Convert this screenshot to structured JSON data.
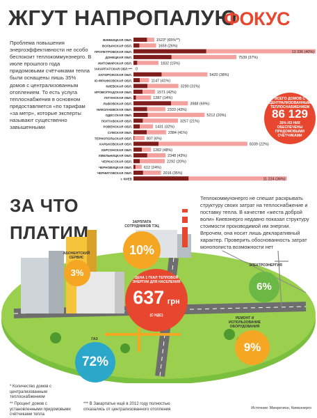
{
  "header": {
    "title": "ЖГУТ НАПРОПАЛУЮ",
    "logo": "ФОКУС"
  },
  "intro_text": "Проблема повышения энергоэффективности не особо беспокоит теплокоммунэнерго. В июле прошлого года придомовыми счётчиками тепла были оснащены лишь 35% домов с централизованным отоплением. То есть услуга теплоснабжения в основном предоставляется «по тарифам «за метр», которые эксперты называют существенно завышенными",
  "callout": {
    "top_text": "ВСЕГО ДОМОВ С ЦЕНТРАЛИЗОВАННЫМ ТЕПЛОСНАБЖЕНИЕМ",
    "value": "86 129",
    "bottom_text": "35% ИЗ НИХ ОБЕСПЕЧЕНЫ ПРИДОМОВЫМИ СЧЁТЧИКАМИ"
  },
  "chart_data": {
    "type": "bar",
    "series": [
      {
        "name": "Количество домов с централизованным теплоснабжением"
      },
      {
        "name": "Процент домов с установленными придомовыми счётчиками тепла"
      }
    ],
    "rows": [
      {
        "region": "ВИННИЦКАЯ ОБЛ.",
        "houses": 1523,
        "pct": 65,
        "label": "1523* (65%**)"
      },
      {
        "region": "ВОЛЫНСКАЯ ОБЛ.",
        "houses": 1659,
        "pct": 26,
        "label": "1659 (26%)"
      },
      {
        "region": "ДНЕПРОПЕТРОВСКАЯ ОБЛ.",
        "houses": 13336,
        "pct": 40,
        "label": "13 336 (40%)"
      },
      {
        "region": "ДОНЕЦКАЯ ОБЛ.",
        "houses": 7539,
        "pct": 37,
        "label": "7539 (37%)"
      },
      {
        "region": "ЖИТОМИРСКАЯ ОБЛ.",
        "houses": 1832,
        "pct": 15,
        "label": "1832 (15%)"
      },
      {
        "region": "ЗАКАРПАТСКАЯ ОБЛ.***",
        "houses": 0,
        "pct": 0,
        "label": "0"
      },
      {
        "region": "ЗАПОРОЖСКАЯ ОБЛ.",
        "houses": 5420,
        "pct": 38,
        "label": "5420 (38%)"
      },
      {
        "region": "ИВАНО-ФРАНКОВСКАЯ ОБЛ.",
        "houses": 1147,
        "pct": 41,
        "label": "1147 (41%)"
      },
      {
        "region": "КИЕВСКАЯ ОБЛ.",
        "houses": 3290,
        "pct": 31,
        "label": "3290 (31%)"
      },
      {
        "region": "КИРОВОГРАДСКАЯ ОБЛ.",
        "houses": 1571,
        "pct": 42,
        "label": "1571 (42%)"
      },
      {
        "region": "ЛУГАНСКАЯ ОБЛ.",
        "houses": 1287,
        "pct": 14,
        "label": "1287 (14%)"
      },
      {
        "region": "ЛЬВОВСКАЯ ОБЛ.",
        "houses": 3988,
        "pct": 69,
        "label": "3988 (69%)"
      },
      {
        "region": "НИКОЛАЕВСКАЯ ОБЛ.",
        "houses": 2333,
        "pct": 43,
        "label": "2333 (43%)"
      },
      {
        "region": "ОДЕССКАЯ ОБЛ.",
        "houses": 5212,
        "pct": 20,
        "label": "5212 (20%)"
      },
      {
        "region": "ПОЛТАВСКАЯ ОБЛ.",
        "houses": 3257,
        "pct": 21,
        "label": "3257 (21%)"
      },
      {
        "region": "РОВЕНСКАЯ ОБЛ.",
        "houses": 1431,
        "pct": 32,
        "label": "1431 (32%)"
      },
      {
        "region": "СУМСКАЯ ОБЛ.",
        "houses": 2384,
        "pct": 41,
        "label": "2384 (41%)"
      },
      {
        "region": "ТЕРНОПОЛЬСКАЯ ОБЛ.",
        "houses": 807,
        "pct": 6,
        "label": "807 (6%)"
      },
      {
        "region": "ХАРЬКОВСКАЯ ОБЛ.",
        "houses": 8339,
        "pct": 22,
        "label": "8339 (22%)"
      },
      {
        "region": "ХЕРСОНСКАЯ ОБЛ.",
        "houses": 1282,
        "pct": 48,
        "label": "1282 (48%)"
      },
      {
        "region": "ХМЕЛЬНИЦКАЯ ОБЛ.",
        "houses": 2348,
        "pct": 43,
        "label": "2348 (43%)"
      },
      {
        "region": "ЧЕРКАССКАЯ ОБЛ.",
        "houses": 2292,
        "pct": 20,
        "label": "2292 (20%)"
      },
      {
        "region": "ЧЕРНОВИЦКАЯ ОБЛ.",
        "houses": 612,
        "pct": 24,
        "label": "612 (24%)"
      },
      {
        "region": "ЧЕРНИГОВСКАЯ ОБЛ.",
        "houses": 2016,
        "pct": 35,
        "label": "2016 (35%)"
      },
      {
        "region": "г. КИЕВ",
        "houses": 11224,
        "pct": 36,
        "label": "11 224 (36%)"
      }
    ],
    "xlim": [
      0,
      13336
    ]
  },
  "section2": {
    "title_line1": "ЗА ЧТО",
    "title_line2": "ПЛАТИМ",
    "paragraph": "Теплокоммунэнерго не спешат раскрывать структуру своих затрат на теплоснабжение и поставку тепла. В качестве «жеста доброй воли» Киевэнерго недавно показал структуру стоимости производимой им энергии. Впрочем, она носит лишь декларативный характер. Проверить обоснованность затрат монополиста возможности нет"
  },
  "cost_structure": [
    {
      "label": "ЗАРПЛАТА СОТРУДНИКОВ ТЭЦ",
      "value": "10%"
    },
    {
      "label": "АБОНЕНТСКИЙ СЕРВИС",
      "value": "3%"
    },
    {
      "label": "ГАЗ",
      "value": "72%"
    },
    {
      "label": "ЭЛЕКТРОЭНЕРГИЯ",
      "value": "6%"
    },
    {
      "label": "РЕМОНТ И ИСПОЛЬЗОВАНИЕ ОБОРУДОВАНИЯ",
      "value": "9%"
    }
  ],
  "price": {
    "label": "ЦЕНА 1 ГКАЛ ТЕПЛОВОЙ ЭНЕРГИИ ДЛЯ НАСЕЛЕНИЯ",
    "value": "637",
    "unit": "грн",
    "note": "(С НДС)"
  },
  "footnotes": {
    "f1": "* Количество домов с централизованным теплоснабжением",
    "f2": "** Процент домов с установленными придомовыми счётчиками тепла",
    "f3": "*** В Закарпатье ещё в 2012 году полностью отказались от централизованного отопления"
  },
  "source": "Источник: Минрегион, Киевэнерго",
  "colors": {
    "accent": "#e8472f",
    "bar_dark": "#7e1d1b",
    "bar_light": "#f4a29f",
    "gas": "#2aa7c9",
    "orange": "#f5a623",
    "green": "#6cb845"
  }
}
